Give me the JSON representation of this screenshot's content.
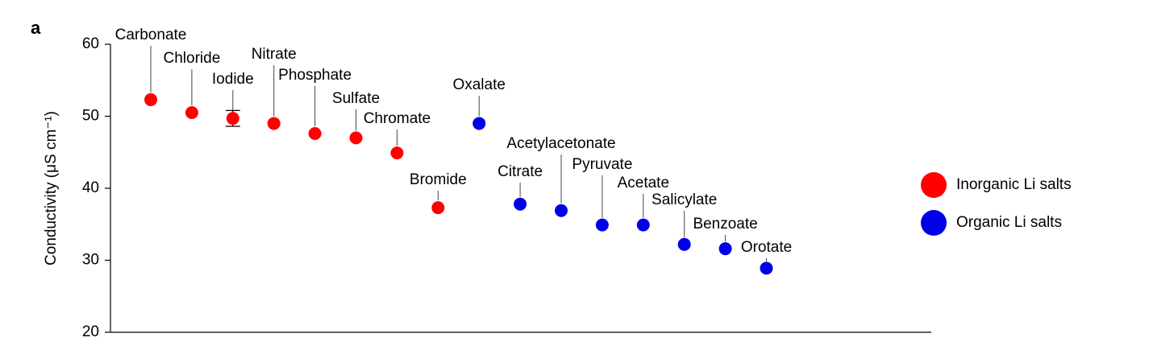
{
  "chart_data": {
    "type": "scatter",
    "panel_label": "a",
    "y_label": "Conductivity (μS cm⁻¹)",
    "categories": [
      "Carbonate",
      "Chloride",
      "Iodide",
      "Nitrate",
      "Phosphate",
      "Sulfate",
      "Chromate",
      "Bromide",
      "Oxalate",
      "Citrate",
      "Acetylacetonate",
      "Pyruvate",
      "Acetate",
      "Salicylate",
      "Benzoate",
      "Orotate"
    ],
    "series": [
      {
        "name": "Inorganic Li salts",
        "color": "#ff0000",
        "values": [
          52.3,
          50.5,
          49.7,
          49.0,
          47.6,
          47.0,
          44.9,
          37.3,
          null,
          null,
          null,
          null,
          null,
          null,
          null,
          null
        ],
        "errors": [
          0.3,
          0.3,
          1.1,
          0.3,
          0.3,
          0.3,
          0.3,
          0.3,
          null,
          null,
          null,
          null,
          null,
          null,
          null,
          null
        ]
      },
      {
        "name": "Organic Li salts",
        "color": "#0000e6",
        "values": [
          null,
          null,
          null,
          null,
          null,
          null,
          null,
          null,
          49.0,
          37.8,
          36.9,
          34.9,
          34.9,
          32.2,
          31.6,
          28.9
        ],
        "errors": [
          null,
          null,
          null,
          null,
          null,
          null,
          null,
          null,
          0.3,
          0.3,
          0.3,
          0.3,
          0.3,
          0.3,
          0.3,
          0.3
        ]
      }
    ],
    "ylim": [
      20,
      60
    ],
    "yticks": [
      20,
      30,
      40,
      50,
      60
    ],
    "grid": false,
    "legend": "right"
  }
}
